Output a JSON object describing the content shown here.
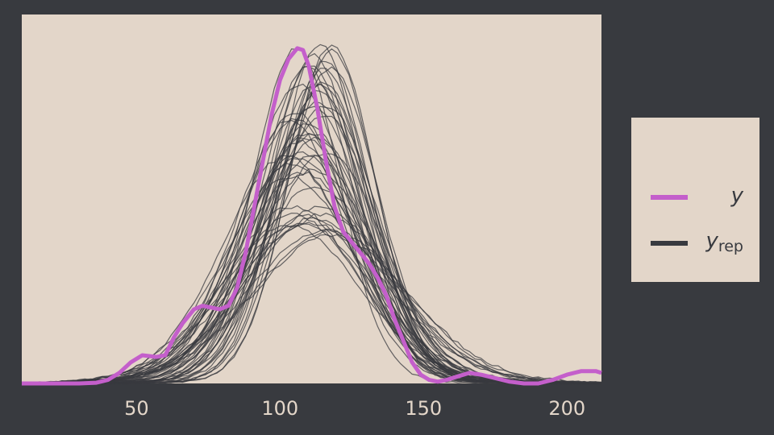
{
  "chart_data": {
    "type": "line",
    "title": "",
    "xlabel": "",
    "ylabel": "",
    "xlim": [
      10,
      212
    ],
    "ylim": [
      0,
      1.0
    ],
    "x_ticks": [
      50,
      100,
      150,
      200
    ],
    "y_axis_visible": false,
    "grid": false,
    "legend_position": "right",
    "legend": [
      {
        "key": "y",
        "label": "y",
        "subscript": "",
        "color": "#c45fcb"
      },
      {
        "key": "yrep",
        "label": "y",
        "subscript": "rep",
        "color": "#383a3f"
      }
    ],
    "colors": {
      "background": "#383a3f",
      "panel": "#e3d6c9",
      "y": "#c45fcb",
      "yrep": "#383a3f",
      "tick_text": "#e3d6c9"
    },
    "series": [
      {
        "key": "y",
        "x": [
          10,
          30,
          36,
          40,
          44,
          48,
          52,
          57,
          60,
          63,
          66,
          70,
          73,
          76,
          79,
          82,
          85,
          88,
          91,
          94,
          97,
          100,
          103,
          106,
          108,
          110,
          113,
          116,
          119,
          122,
          125,
          128,
          131,
          134,
          137,
          140,
          143,
          146,
          149,
          152,
          155,
          158,
          162,
          166,
          170,
          175,
          180,
          185,
          190,
          195,
          200,
          205,
          210,
          212
        ],
        "y": [
          0.0,
          0.0,
          0.002,
          0.01,
          0.03,
          0.06,
          0.08,
          0.075,
          0.08,
          0.13,
          0.17,
          0.21,
          0.22,
          0.215,
          0.21,
          0.22,
          0.27,
          0.37,
          0.5,
          0.63,
          0.76,
          0.86,
          0.92,
          0.95,
          0.945,
          0.9,
          0.78,
          0.63,
          0.5,
          0.43,
          0.4,
          0.37,
          0.34,
          0.3,
          0.25,
          0.18,
          0.12,
          0.06,
          0.025,
          0.01,
          0.005,
          0.01,
          0.02,
          0.03,
          0.025,
          0.015,
          0.005,
          0.0,
          0.0,
          0.01,
          0.025,
          0.035,
          0.035,
          0.03
        ]
      }
    ],
    "yrep": {
      "count": 50,
      "min_center": 102,
      "max_center": 118,
      "min_height": 0.41,
      "max_height": 0.99,
      "min_spread": 14,
      "max_spread": 27
    }
  }
}
